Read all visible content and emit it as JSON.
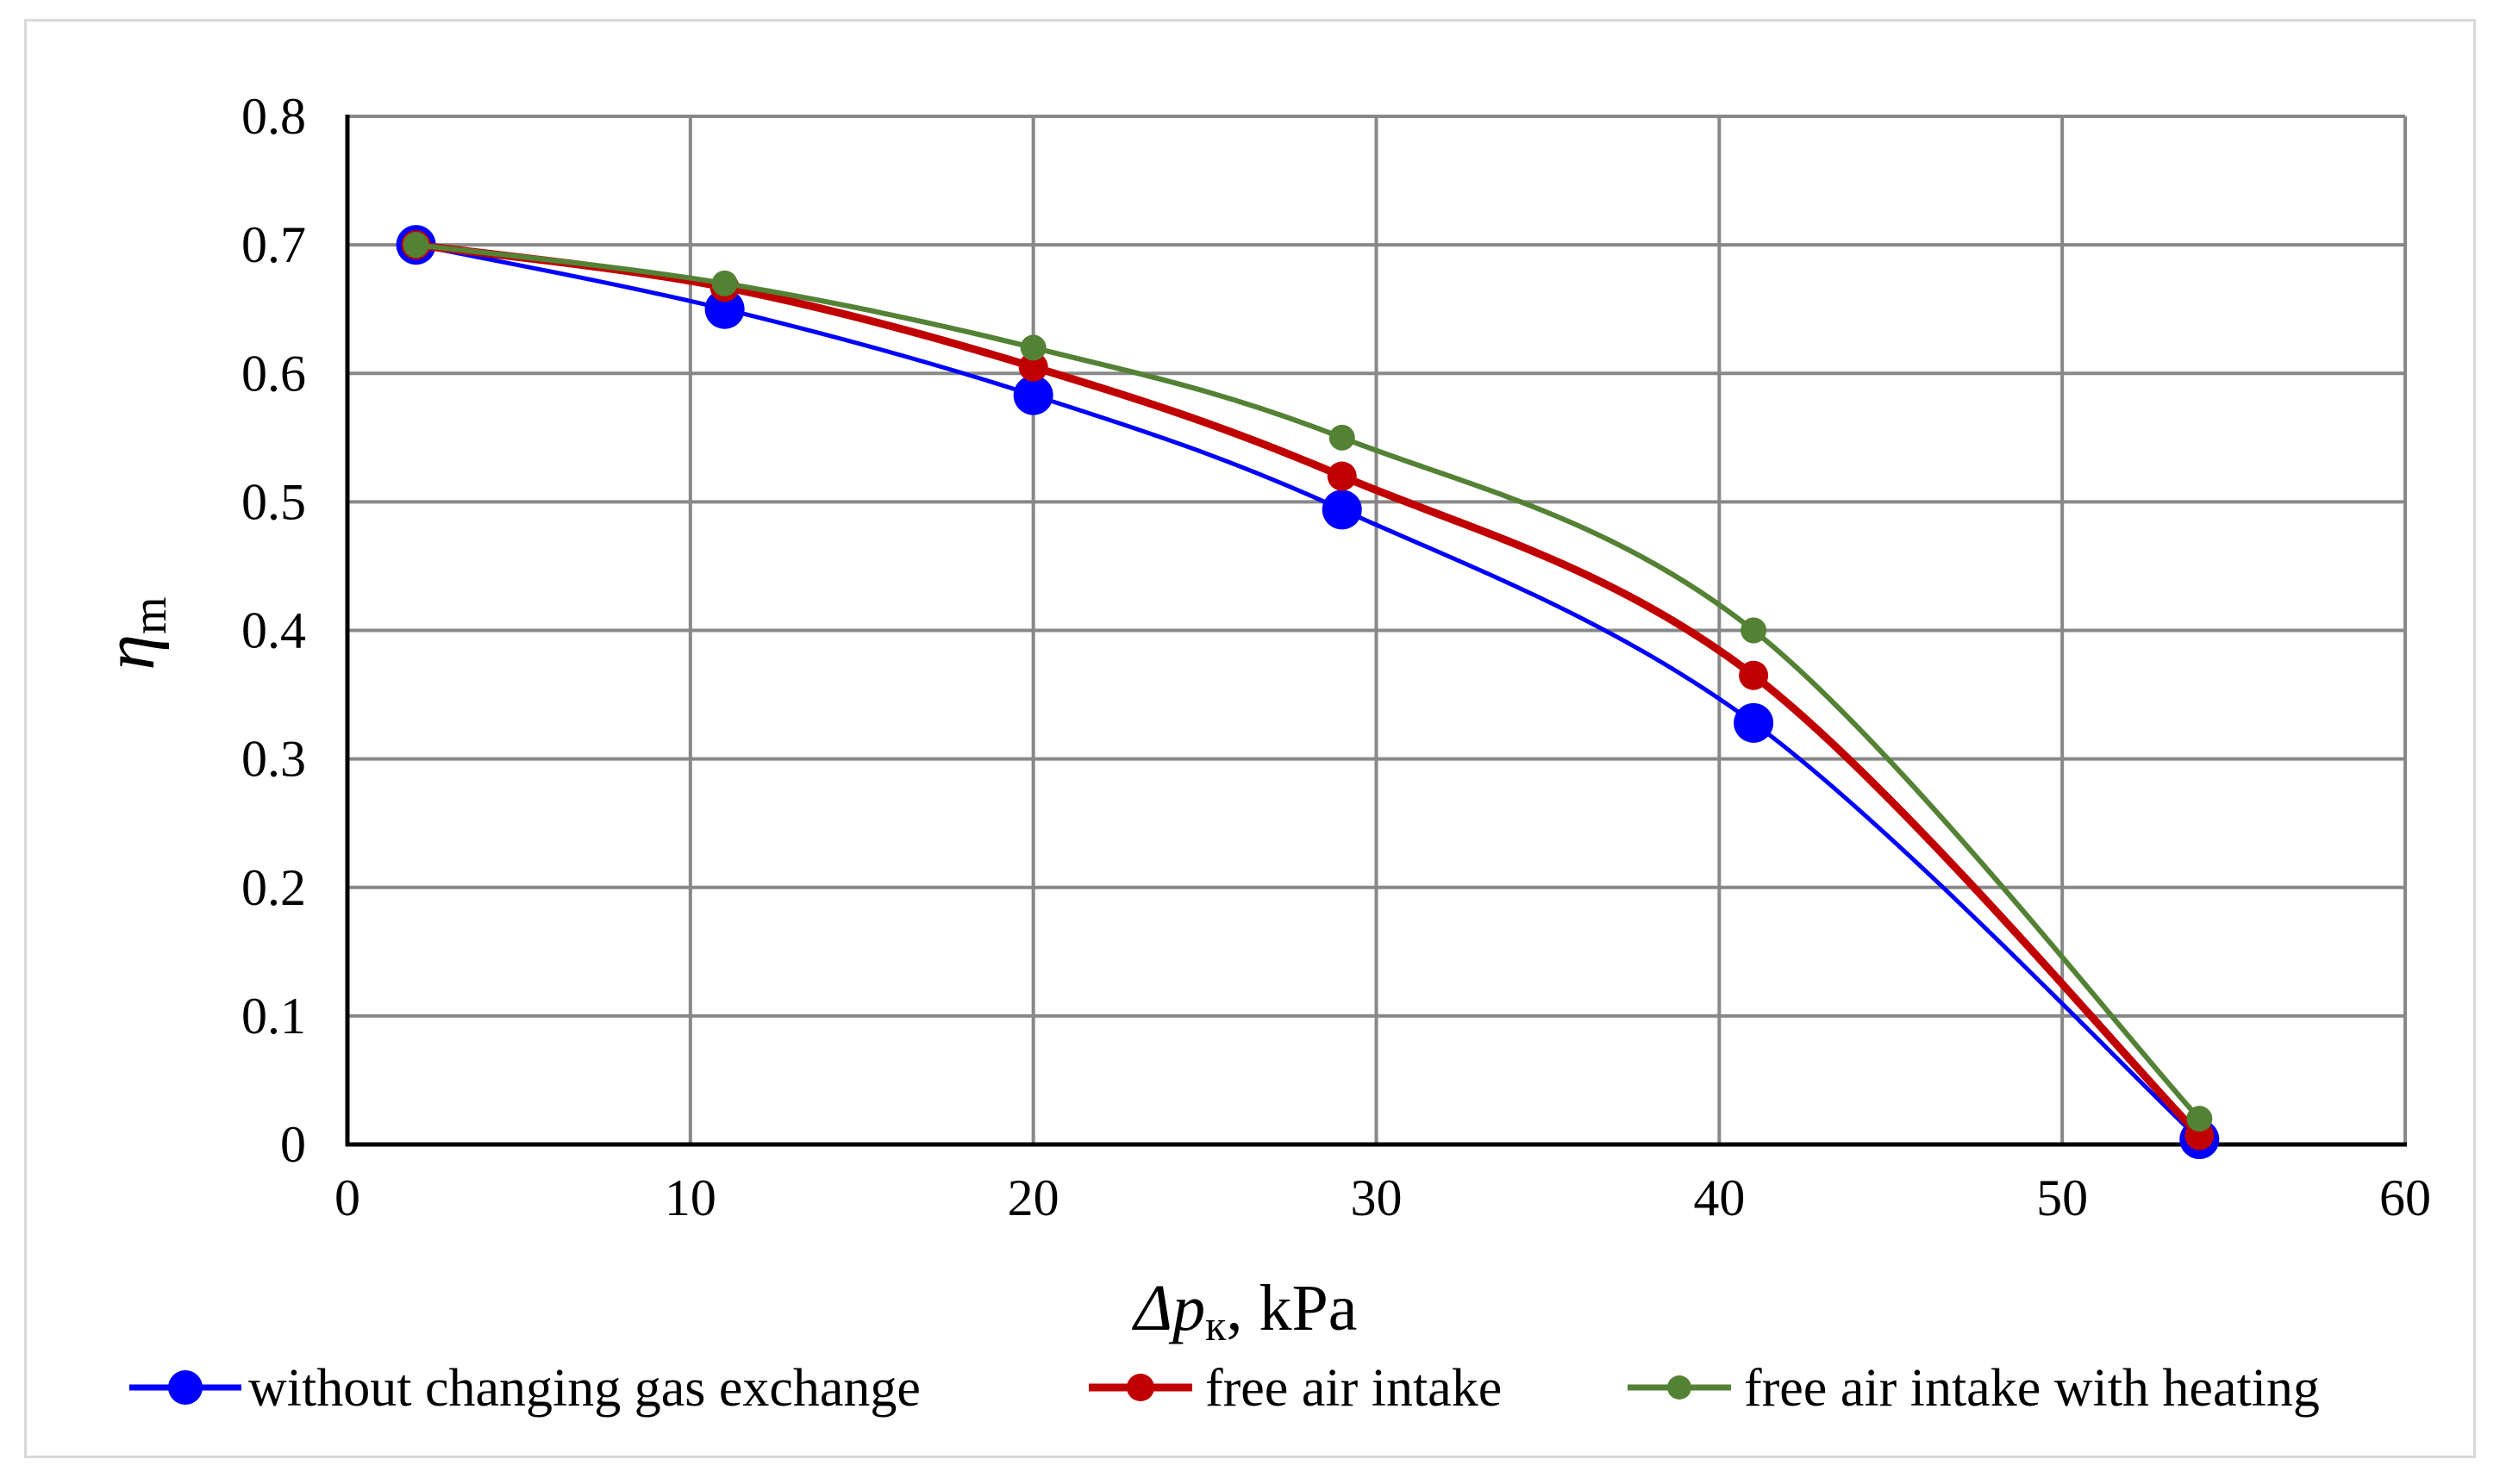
{
  "chart_data": {
    "type": "line",
    "title": "",
    "xlabel_prefix": "Δp",
    "xlabel_subscript": "к",
    "xlabel_suffix": ", kPa",
    "ylabel_main": "η",
    "ylabel_subscript": "m",
    "xlim": [
      0,
      60
    ],
    "ylim": [
      0,
      0.8
    ],
    "xticks": [
      0,
      10,
      20,
      30,
      40,
      50,
      60
    ],
    "xtick_labels": [
      "0",
      "10",
      "20",
      "30",
      "40",
      "50",
      "60"
    ],
    "yticks": [
      0,
      0.1,
      0.2,
      0.3,
      0.4,
      0.5,
      0.6,
      0.7,
      0.8
    ],
    "ytick_labels": [
      "0",
      "0.1",
      "0.2",
      "0.3",
      "0.4",
      "0.5",
      "0.6",
      "0.7",
      "0.8"
    ],
    "grid": true,
    "legend_position": "bottom",
    "series": [
      {
        "name": "without changing gas exchange",
        "color": "#0000ff",
        "marker": "large-circle",
        "x": [
          2,
          11,
          20,
          29,
          41,
          54
        ],
        "y": [
          0.7,
          0.65,
          0.583,
          0.494,
          0.328,
          0.004
        ]
      },
      {
        "name": "free air intake",
        "color": "#c00000",
        "marker": "circle",
        "x": [
          2,
          11,
          20,
          29,
          41,
          54
        ],
        "y": [
          0.7,
          0.667,
          0.605,
          0.52,
          0.365,
          0.007
        ]
      },
      {
        "name": "free air intake with heating",
        "color": "#548235",
        "marker": "small-circle",
        "x": [
          2,
          11,
          20,
          29,
          41,
          54
        ],
        "y": [
          0.7,
          0.67,
          0.62,
          0.55,
          0.4,
          0.02
        ]
      }
    ]
  }
}
